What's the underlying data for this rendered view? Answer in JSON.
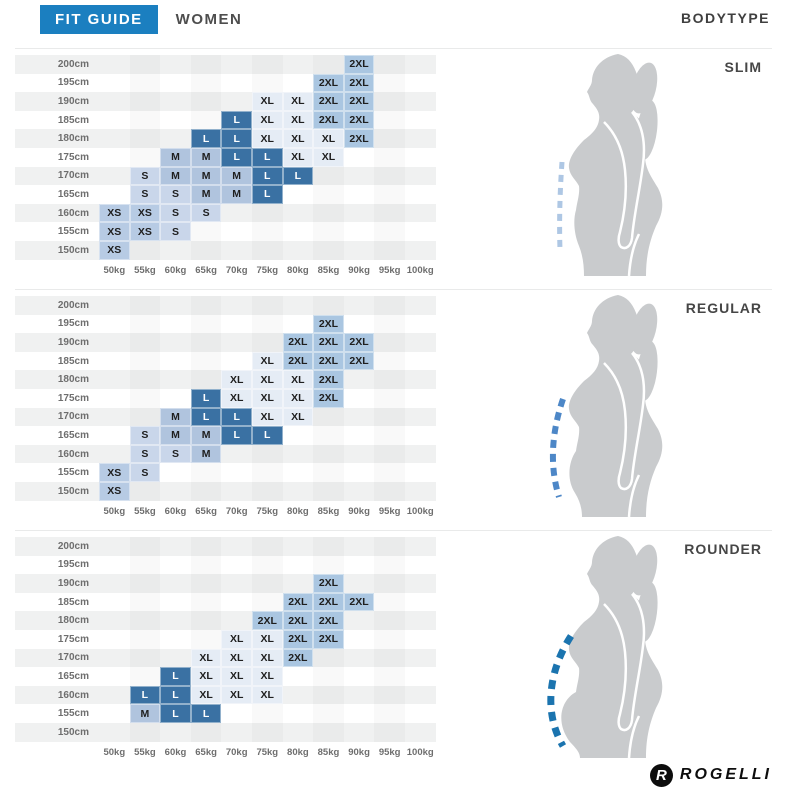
{
  "header": {
    "brand_tab": "FIT GUIDE",
    "category_tab": "WOMEN",
    "right_label": "BODYTYPE"
  },
  "chart_data": {
    "type": "heatmap",
    "title": "FIT GUIDE WOMEN",
    "ylabel": "height",
    "xlabel": "weight",
    "y_labels": [
      "200cm",
      "195cm",
      "190cm",
      "185cm",
      "180cm",
      "175cm",
      "170cm",
      "165cm",
      "160cm",
      "155cm",
      "150cm"
    ],
    "x_labels": [
      "50kg",
      "55kg",
      "60kg",
      "65kg",
      "70kg",
      "75kg",
      "80kg",
      "85kg",
      "90kg",
      "95kg",
      "100kg"
    ],
    "legend_sizes": [
      "XS",
      "S",
      "M",
      "L",
      "XL",
      "2XL"
    ],
    "panels": [
      {
        "name": "SLIM",
        "dash_color": "#aec7e4",
        "grid": [
          [
            "",
            "",
            "",
            "",
            "",
            "",
            "",
            "",
            "2XL",
            "",
            ""
          ],
          [
            "",
            "",
            "",
            "",
            "",
            "",
            "",
            "2XL",
            "2XL",
            "",
            ""
          ],
          [
            "",
            "",
            "",
            "",
            "",
            "XL",
            "XL",
            "2XL",
            "2XL",
            "",
            ""
          ],
          [
            "",
            "",
            "",
            "",
            "L",
            "XL",
            "XL",
            "2XL",
            "2XL",
            "",
            ""
          ],
          [
            "",
            "",
            "",
            "L",
            "L",
            "XL",
            "XL",
            "XL",
            "2XL",
            "",
            ""
          ],
          [
            "",
            "",
            "M",
            "M",
            "L",
            "L",
            "XL",
            "XL",
            "",
            "",
            ""
          ],
          [
            "",
            "S",
            "M",
            "M",
            "M",
            "L",
            "L",
            "",
            "",
            "",
            ""
          ],
          [
            "",
            "S",
            "S",
            "M",
            "M",
            "L",
            "",
            "",
            "",
            "",
            ""
          ],
          [
            "XS",
            "XS",
            "S",
            "S",
            "",
            "",
            "",
            "",
            "",
            "",
            ""
          ],
          [
            "XS",
            "XS",
            "S",
            "",
            "",
            "",
            "",
            "",
            "",
            "",
            ""
          ],
          [
            "XS",
            "",
            "",
            "",
            "",
            "",
            "",
            "",
            "",
            "",
            ""
          ]
        ]
      },
      {
        "name": "REGULAR",
        "dash_color": "#4d87c7",
        "grid": [
          [
            "",
            "",
            "",
            "",
            "",
            "",
            "",
            "",
            "",
            "",
            ""
          ],
          [
            "",
            "",
            "",
            "",
            "",
            "",
            "",
            "2XL",
            "",
            "",
            ""
          ],
          [
            "",
            "",
            "",
            "",
            "",
            "",
            "2XL",
            "2XL",
            "2XL",
            "",
            ""
          ],
          [
            "",
            "",
            "",
            "",
            "",
            "XL",
            "2XL",
            "2XL",
            "2XL",
            "",
            ""
          ],
          [
            "",
            "",
            "",
            "",
            "XL",
            "XL",
            "XL",
            "2XL",
            "",
            "",
            ""
          ],
          [
            "",
            "",
            "",
            "L",
            "XL",
            "XL",
            "XL",
            "2XL",
            "",
            "",
            ""
          ],
          [
            "",
            "",
            "M",
            "L",
            "L",
            "XL",
            "XL",
            "",
            "",
            "",
            ""
          ],
          [
            "",
            "S",
            "M",
            "M",
            "L",
            "L",
            "",
            "",
            "",
            "",
            ""
          ],
          [
            "",
            "S",
            "S",
            "M",
            "",
            "",
            "",
            "",
            "",
            "",
            ""
          ],
          [
            "XS",
            "S",
            "",
            "",
            "",
            "",
            "",
            "",
            "",
            "",
            ""
          ],
          [
            "XS",
            "",
            "",
            "",
            "",
            "",
            "",
            "",
            "",
            "",
            ""
          ]
        ]
      },
      {
        "name": "ROUNDER",
        "dash_color": "#1b74af",
        "grid": [
          [
            "",
            "",
            "",
            "",
            "",
            "",
            "",
            "",
            "",
            "",
            ""
          ],
          [
            "",
            "",
            "",
            "",
            "",
            "",
            "",
            "",
            "",
            "",
            ""
          ],
          [
            "",
            "",
            "",
            "",
            "",
            "",
            "",
            "2XL",
            "",
            "",
            ""
          ],
          [
            "",
            "",
            "",
            "",
            "",
            "",
            "2XL",
            "2XL",
            "2XL",
            "",
            ""
          ],
          [
            "",
            "",
            "",
            "",
            "",
            "2XL",
            "2XL",
            "2XL",
            "",
            "",
            ""
          ],
          [
            "",
            "",
            "",
            "",
            "XL",
            "XL",
            "2XL",
            "2XL",
            "",
            "",
            ""
          ],
          [
            "",
            "",
            "",
            "XL",
            "XL",
            "XL",
            "2XL",
            "",
            "",
            "",
            ""
          ],
          [
            "",
            "",
            "L",
            "XL",
            "XL",
            "XL",
            "",
            "",
            "",
            "",
            ""
          ],
          [
            "",
            "L",
            "L",
            "XL",
            "XL",
            "XL",
            "",
            "",
            "",
            "",
            ""
          ],
          [
            "",
            "M",
            "L",
            "L",
            "",
            "",
            "",
            "",
            "",
            "",
            ""
          ],
          [
            "",
            "",
            "",
            "",
            "",
            "",
            "",
            "",
            "",
            "",
            ""
          ]
        ]
      }
    ]
  },
  "colors": {
    "header_blue": "#1b7fc0",
    "row_stripe": "#f0f1f1",
    "silhouette_gray": "#c9cbcd",
    "size_fill": {
      "XS": "#b7cbe4",
      "S": "#c9d6ea",
      "M": "#b0c4de",
      "L": "#3a71a3",
      "XL": "#e5ecf5",
      "2XL": "#aac6e1"
    },
    "size_text_dark": "#1e1e1e",
    "size_text_light": "#ffffff"
  },
  "logo": {
    "text": "ROGELLI"
  }
}
